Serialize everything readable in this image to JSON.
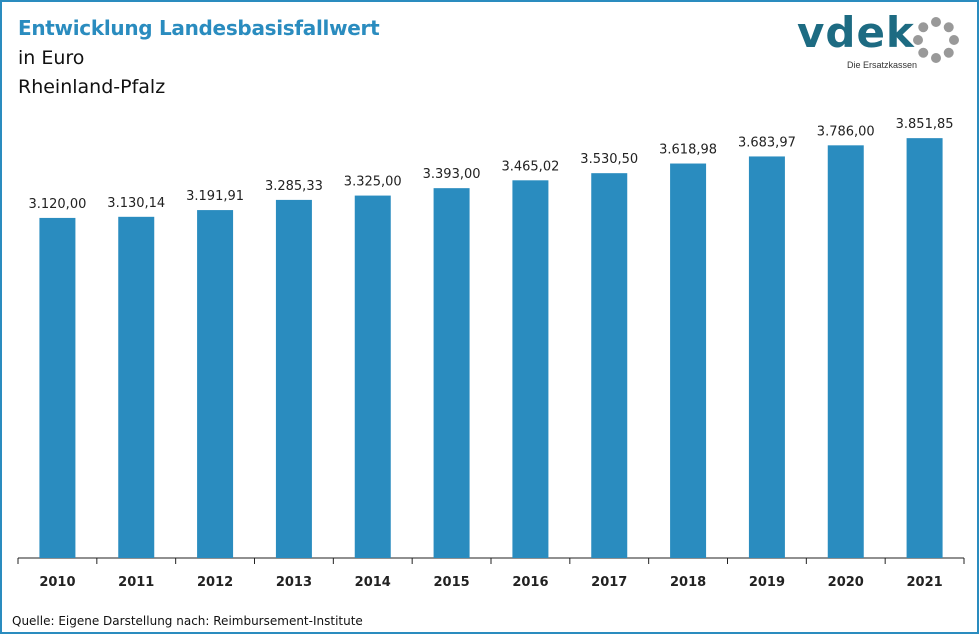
{
  "title": "Entwicklung Landesbasisfallwert",
  "subtitle_unit": "in Euro",
  "subtitle_region": "Rheinland-Pfalz",
  "logo": {
    "word": "vdek",
    "tagline": "Die Ersatzkassen",
    "ring_color": "#999999"
  },
  "footer": "Quelle: Eigene Darstellung nach: Reimbursement-Institute",
  "colors": {
    "bar": "#2a8cbf",
    "title": "#2a8cbf",
    "frame": "#2a8cbf",
    "logo": "#1d6b82"
  },
  "chart_data": {
    "type": "bar",
    "categories": [
      "2010",
      "2011",
      "2012",
      "2013",
      "2014",
      "2015",
      "2016",
      "2017",
      "2018",
      "2019",
      "2020",
      "2021"
    ],
    "values": [
      3120.0,
      3130.14,
      3191.91,
      3285.33,
      3325.0,
      3393.0,
      3465.02,
      3530.5,
      3618.98,
      3683.97,
      3786.0,
      3851.85
    ],
    "value_labels": [
      "3.120,00",
      "3.130,14",
      "3.191,91",
      "3.285,33",
      "3.325,00",
      "3.393,00",
      "3.465,02",
      "3.530,50",
      "3.618,98",
      "3.683,97",
      "3.786,00",
      "3.851,85"
    ],
    "ylim": [
      0,
      4000
    ],
    "xlabel": "",
    "ylabel": "",
    "grid": false,
    "legend": "none"
  }
}
